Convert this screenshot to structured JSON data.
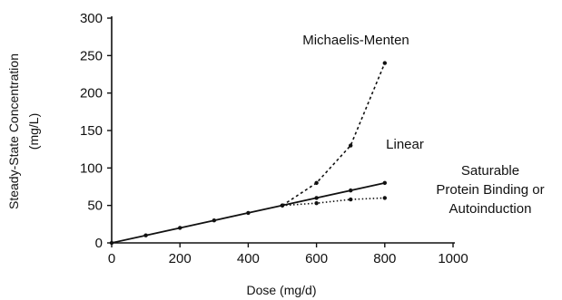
{
  "chart_data": {
    "type": "line",
    "xlabel": "Dose (mg/d)",
    "ylabel_line1": "Steady-State Concentration",
    "ylabel_line2": "(mg/L)",
    "xlim": [
      0,
      1000
    ],
    "ylim": [
      0,
      300
    ],
    "xticks": [
      "0",
      "200",
      "400",
      "600",
      "800",
      "1000"
    ],
    "yticks": [
      "0",
      "50",
      "100",
      "150",
      "200",
      "250",
      "300"
    ],
    "grid": false,
    "series": [
      {
        "name": "Linear",
        "style": "solid",
        "x": [
          0,
          100,
          200,
          300,
          400,
          500,
          600,
          700,
          800
        ],
        "y": [
          0,
          10,
          20,
          30,
          40,
          50,
          60,
          70,
          80
        ]
      },
      {
        "name": "Michaelis-Menten",
        "style": "dashed",
        "x": [
          500,
          600,
          700,
          800
        ],
        "y": [
          50,
          80,
          130,
          240
        ]
      },
      {
        "name": "Saturable Protein Binding or Autoinduction",
        "style": "dotted",
        "x": [
          500,
          600,
          700,
          800
        ],
        "y": [
          50,
          53,
          58,
          60
        ]
      }
    ],
    "annotations": [
      {
        "key": "mm",
        "lines": [
          "Michaelis-Menten"
        ]
      },
      {
        "key": "linear",
        "lines": [
          "Linear"
        ]
      },
      {
        "key": "saturable",
        "lines": [
          "Saturable",
          "Protein Binding or",
          "Autoinduction"
        ]
      }
    ]
  }
}
